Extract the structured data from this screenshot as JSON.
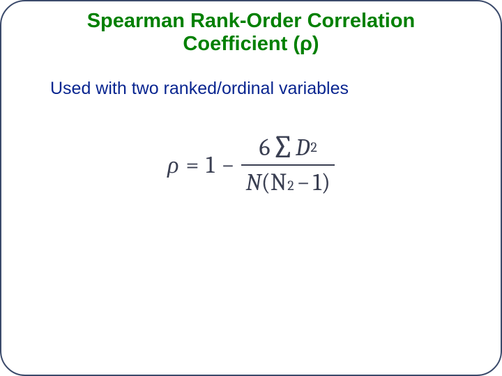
{
  "title": {
    "line1": "Spearman Rank-Order Correlation",
    "line2": "Coefficient (ρ)",
    "color": "#008000",
    "fontsize": 29,
    "fontweight": "bold"
  },
  "subtitle": {
    "text": "Used with two ranked/ordinal variables",
    "color": "#0a2690",
    "fontsize": 25
  },
  "formula": {
    "rho": "ρ",
    "equals": "=",
    "one": "1",
    "minus": "−",
    "num_6": "6",
    "num_sigma": "∑",
    "num_D": "D",
    "num_Dexp": "2",
    "den_N1": "N",
    "den_open": "(",
    "den_N2": "N",
    "den_exp": "2",
    "den_minus": "−",
    "den_one": "1",
    "den_close": ")",
    "color": "#3a3f52",
    "fontsize": 34,
    "sup_fontsize": 20,
    "bar_color": "#3a3f52"
  },
  "slide": {
    "border_color": "#3b4a6b",
    "background": "#ffffff",
    "border_radius": 36
  }
}
